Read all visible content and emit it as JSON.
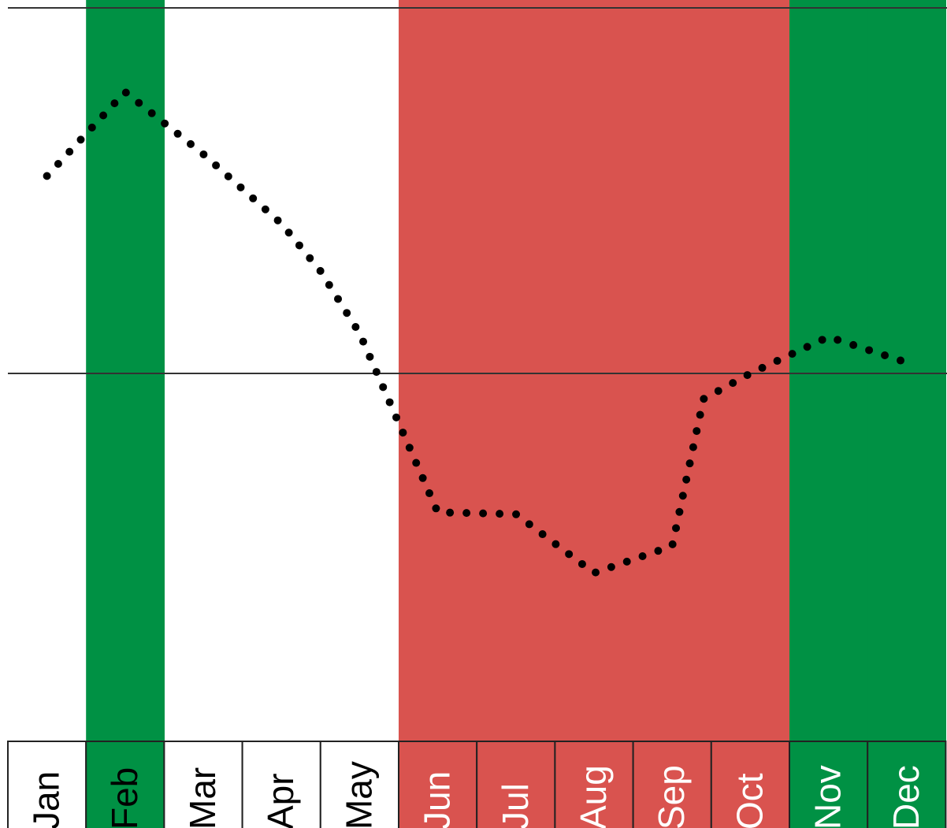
{
  "chart_data": {
    "type": "line",
    "title": "",
    "xlabel": "",
    "ylabel": "",
    "categories": [
      "Jan",
      "Feb",
      "Mar",
      "Apr",
      "May",
      "Jun",
      "Jul",
      "Aug",
      "Sep",
      "Oct",
      "Nov",
      "Dec"
    ],
    "x": [
      0,
      1,
      2,
      3,
      3.5,
      4,
      5,
      6,
      7,
      8,
      8.4,
      9,
      10,
      11
    ],
    "values": [
      54,
      77,
      60,
      41,
      28,
      11,
      -38,
      -38.5,
      -54.6,
      -47.2,
      -7,
      0,
      10,
      3
    ],
    "ylim": [
      -100,
      100
    ],
    "baseline": 0,
    "line_style": "dotted",
    "grid": false,
    "legend": "none",
    "colors": {
      "line": "#000000",
      "green": "#009144",
      "red": "#d9534f",
      "white": "#ffffff"
    },
    "month_fill": [
      "white",
      "green",
      "white",
      "white",
      "white",
      "red",
      "red",
      "red",
      "red",
      "red",
      "green",
      "green"
    ],
    "month_label_color": [
      "black",
      "black",
      "black",
      "black",
      "black",
      "white",
      "white",
      "white",
      "white",
      "white",
      "white",
      "white"
    ]
  }
}
